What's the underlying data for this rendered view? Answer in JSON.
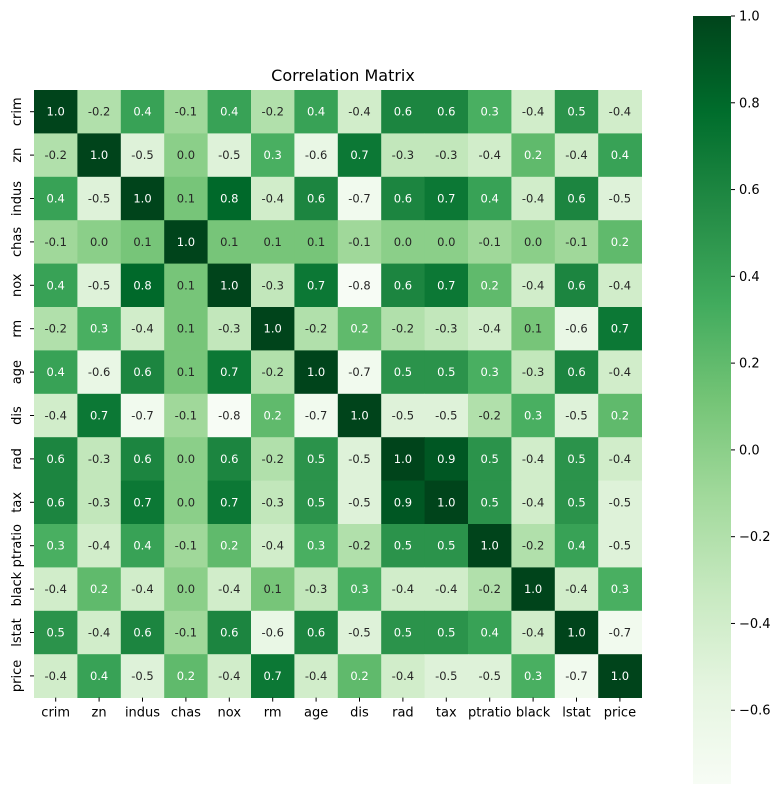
{
  "chart_data": {
    "type": "heatmap",
    "title": "Correlation Matrix",
    "xlabel": "",
    "ylabel": "",
    "labels": [
      "crim",
      "zn",
      "indus",
      "chas",
      "nox",
      "rm",
      "age",
      "dis",
      "rad",
      "tax",
      "ptratio",
      "black",
      "lstat",
      "price"
    ],
    "matrix": [
      [
        1.0,
        -0.2,
        0.4,
        -0.1,
        0.4,
        -0.2,
        0.4,
        -0.4,
        0.6,
        0.6,
        0.3,
        -0.4,
        0.5,
        -0.4
      ],
      [
        -0.2,
        1.0,
        -0.5,
        -0.0,
        -0.5,
        0.3,
        -0.6,
        0.7,
        -0.3,
        -0.3,
        -0.4,
        0.2,
        -0.4,
        0.4
      ],
      [
        0.4,
        -0.5,
        1.0,
        0.1,
        0.8,
        -0.4,
        0.6,
        -0.7,
        0.6,
        0.7,
        0.4,
        -0.4,
        0.6,
        -0.5
      ],
      [
        -0.1,
        -0.0,
        0.1,
        1.0,
        0.1,
        0.1,
        0.1,
        -0.1,
        -0.0,
        -0.0,
        -0.1,
        0.0,
        -0.1,
        0.2
      ],
      [
        0.4,
        -0.5,
        0.8,
        0.1,
        1.0,
        -0.3,
        0.7,
        -0.8,
        0.6,
        0.7,
        0.2,
        -0.4,
        0.6,
        -0.4
      ],
      [
        -0.2,
        0.3,
        -0.4,
        0.1,
        -0.3,
        1.0,
        -0.2,
        0.2,
        -0.2,
        -0.3,
        -0.4,
        0.1,
        -0.6,
        0.7
      ],
      [
        0.4,
        -0.6,
        0.6,
        0.1,
        0.7,
        -0.2,
        1.0,
        -0.7,
        0.5,
        0.5,
        0.3,
        -0.3,
        0.6,
        -0.4
      ],
      [
        -0.4,
        0.7,
        -0.7,
        -0.1,
        -0.8,
        0.2,
        -0.7,
        1.0,
        -0.5,
        -0.5,
        -0.2,
        0.3,
        -0.5,
        0.2
      ],
      [
        0.6,
        -0.3,
        0.6,
        -0.0,
        0.6,
        -0.2,
        0.5,
        -0.5,
        1.0,
        0.9,
        0.5,
        -0.4,
        0.5,
        -0.4
      ],
      [
        0.6,
        -0.3,
        0.7,
        -0.0,
        0.7,
        -0.3,
        0.5,
        -0.5,
        0.9,
        1.0,
        0.5,
        -0.4,
        0.5,
        -0.5
      ],
      [
        0.3,
        -0.4,
        0.4,
        -0.1,
        0.2,
        -0.4,
        0.3,
        -0.2,
        0.5,
        0.5,
        1.0,
        -0.2,
        0.4,
        -0.5
      ],
      [
        -0.4,
        0.2,
        -0.4,
        0.0,
        -0.4,
        0.1,
        -0.3,
        0.3,
        -0.4,
        -0.4,
        -0.2,
        1.0,
        -0.4,
        0.3
      ],
      [
        0.5,
        -0.4,
        0.6,
        -0.1,
        0.6,
        -0.6,
        0.6,
        -0.5,
        0.5,
        0.5,
        0.4,
        -0.4,
        1.0,
        -0.7
      ],
      [
        -0.4,
        0.4,
        -0.5,
        0.2,
        -0.4,
        0.7,
        -0.4,
        0.2,
        -0.4,
        -0.5,
        -0.5,
        0.3,
        -0.7,
        1.0
      ]
    ],
    "vmin": -0.77,
    "vmax": 1.0,
    "colormap": "Greens",
    "colormap_stops": [
      "#f7fcf5",
      "#e5f5e0",
      "#c7e9c0",
      "#a1d99b",
      "#74c476",
      "#41ab5d",
      "#238b45",
      "#006d2c",
      "#00441b"
    ],
    "colorbar_ticks": [
      1.0,
      0.8,
      0.6,
      0.4,
      0.2,
      0.0,
      -0.2,
      -0.4,
      -0.6
    ],
    "colorbar_tick_labels": [
      "1.0",
      "0.8",
      "0.6",
      "0.4",
      "0.2",
      "0.0",
      "−0.2",
      "−0.4",
      "−0.6"
    ],
    "annotation_format": "0.1f",
    "grid": false,
    "legend": "colorbar-right"
  }
}
